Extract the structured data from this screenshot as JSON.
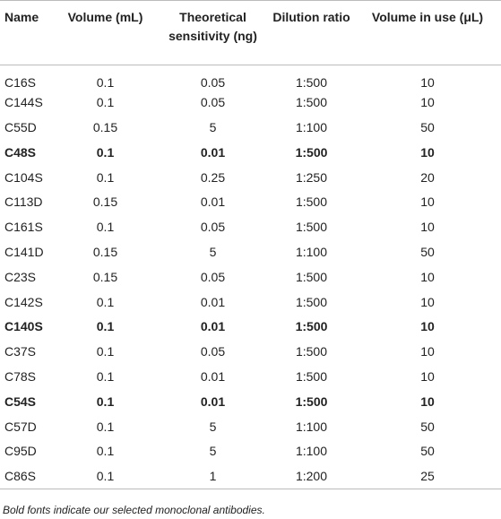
{
  "table": {
    "header": [
      "Name",
      "Volume (mL)",
      "Theoretical sensitivity (ng)",
      "Dilution ratio",
      "Volume in use (μL)"
    ],
    "rows": [
      [
        "C16S",
        "0.1",
        "0.05",
        "1:500",
        "10"
      ],
      [
        "C144S",
        "0.1",
        "0.05",
        "1:500",
        "10"
      ],
      [
        "C55D",
        "0.15",
        "5",
        "1:100",
        "50"
      ],
      [
        "C48S",
        "0.1",
        "0.01",
        "1:500",
        "10"
      ],
      [
        "C104S",
        "0.1",
        "0.25",
        "1:250",
        "20"
      ],
      [
        "C113D",
        "0.15",
        "0.01",
        "1:500",
        "10"
      ],
      [
        "C161S",
        "0.1",
        "0.05",
        "1:500",
        "10"
      ],
      [
        "C141D",
        "0.15",
        "5",
        "1:100",
        "50"
      ],
      [
        "C23S",
        "0.15",
        "0.05",
        "1:500",
        "10"
      ],
      [
        "C142S",
        "0.1",
        "0.01",
        "1:500",
        "10"
      ],
      [
        "C140S",
        "0.1",
        "0.01",
        "1:500",
        "10"
      ],
      [
        "C37S",
        "0.1",
        "0.05",
        "1:500",
        "10"
      ],
      [
        "C78S",
        "0.1",
        "0.01",
        "1:500",
        "10"
      ],
      [
        "C54S",
        "0.1",
        "0.01",
        "1:500",
        "10"
      ],
      [
        "C57D",
        "0.1",
        "5",
        "1:100",
        "50"
      ],
      [
        "C95D",
        "0.1",
        "5",
        "1:100",
        "50"
      ],
      [
        "C86S",
        "0.1",
        "1",
        "1:200",
        "25"
      ]
    ],
    "bold_rows": [
      3,
      10,
      13
    ],
    "footnote": "Bold fonts indicate our selected monoclonal antibodies."
  }
}
